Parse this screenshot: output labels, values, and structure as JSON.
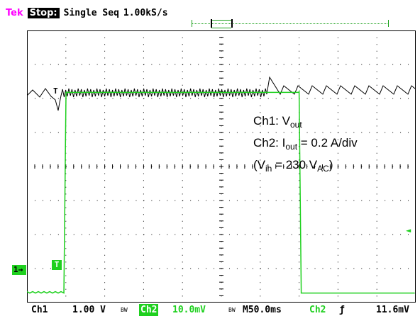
{
  "header": {
    "brand": "Tek",
    "acq_state": "Stop:",
    "acq_mode": "Single Seq",
    "sample_rate": "1.00kS/s"
  },
  "annotation": {
    "line1_prefix": "Ch1: V",
    "line1_sub": "out",
    "line2_prefix": "Ch2: I",
    "line2_sub": "out",
    "line2_suffix": " = 0.2 A/div",
    "line3_open": "(V",
    "line3_sub1": "in",
    "line3_mid": " = 230 V",
    "line3_sub2": "AC",
    "line3_close": ")"
  },
  "markers": {
    "ch1_ground": "1",
    "trigger_point": "T",
    "trigger_level": "◄",
    "trigger_on_ch1": "T"
  },
  "readout": {
    "ch1_label": "Ch1",
    "ch1_scale": "1.00 V",
    "ch1_bw": "BW",
    "ch2_label": "Ch2",
    "ch2_scale": "10.0mV",
    "ch2_bw": "BW",
    "timebase": "M50.0ms",
    "trigger_source": "Ch2",
    "trigger_slope": "ƒ",
    "trigger_value": "11.6mV"
  },
  "colors": {
    "ch1": "#000000",
    "ch2": "#1ed01e",
    "brand": "#ff00ff",
    "grid": "#000000"
  },
  "chart_data": {
    "type": "line",
    "series": [
      {
        "name": "Ch1",
        "description_values": "output voltage ripple; sawtooth ripple before and after load step"
      },
      {
        "name": "Ch2",
        "values_divisions": {
          "baseline": -3.7,
          "step_high": 2.2,
          "step_start_time_div": 0.95,
          "step_end_time_div": 7.0
        }
      }
    ],
    "x_divisions": 10,
    "y_divisions": 8,
    "grid": true
  }
}
